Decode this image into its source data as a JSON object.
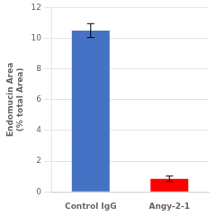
{
  "chart_data": {
    "type": "bar",
    "categories": [
      "Control IgG",
      "Angy-2-1"
    ],
    "values": [
      10.5,
      0.85
    ],
    "errors": [
      0.45,
      0.18
    ],
    "colors": [
      "#4472C4",
      "#FF0000"
    ],
    "ylabel": "Endomucin Area\n(% total Area)",
    "ylim": [
      0,
      12
    ],
    "yticks": [
      0,
      2,
      4,
      6,
      8,
      10,
      12
    ],
    "grid": true
  }
}
